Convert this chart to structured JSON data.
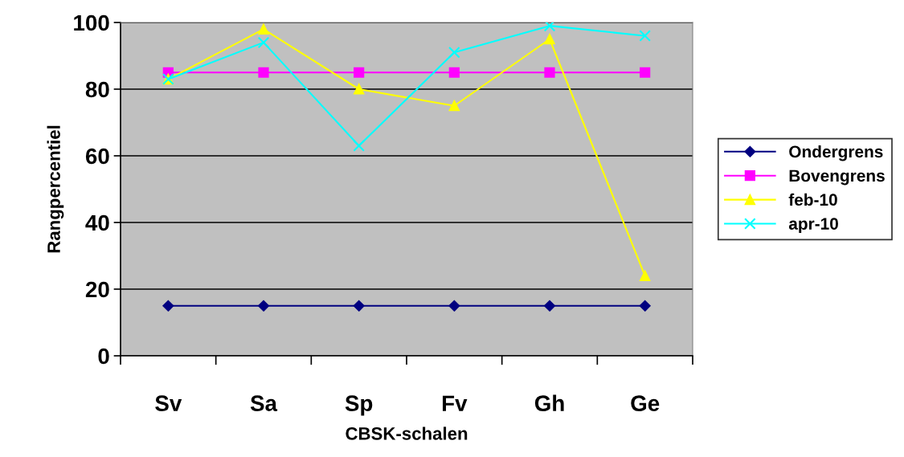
{
  "chart_data": {
    "type": "line",
    "xlabel": "CBSK-schalen",
    "ylabel": "Rangpercentiel",
    "categories": [
      "Sv",
      "Sa",
      "Sp",
      "Fv",
      "Gh",
      "Ge"
    ],
    "series": [
      {
        "name": "Ondergrens",
        "color": "#000080",
        "marker": "diamond",
        "values": [
          15,
          15,
          15,
          15,
          15,
          15
        ]
      },
      {
        "name": "Bovengrens",
        "color": "#ff00ff",
        "marker": "square",
        "values": [
          85,
          85,
          85,
          85,
          85,
          85
        ]
      },
      {
        "name": "feb-10",
        "color": "#ffff00",
        "marker": "triangle",
        "values": [
          83,
          98,
          80,
          75,
          95,
          24
        ]
      },
      {
        "name": "apr-10",
        "color": "#00ffff",
        "marker": "cross",
        "values": [
          83,
          94,
          63,
          91,
          99,
          96
        ]
      }
    ],
    "ylim": [
      0,
      100
    ],
    "yticks": [
      0,
      20,
      40,
      60,
      80,
      100
    ],
    "grid": "y",
    "legend": "right",
    "line_style": "solid"
  }
}
